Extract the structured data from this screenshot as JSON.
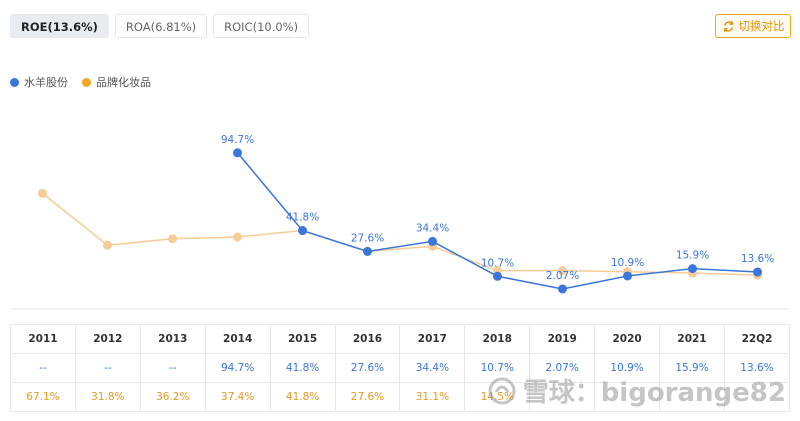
{
  "tabs": [
    {
      "label": "ROE(13.6%)",
      "active": true
    },
    {
      "label": "ROA(6.81%)",
      "active": false
    },
    {
      "label": "ROIC(10.0%)",
      "active": false
    }
  ],
  "switch_button": {
    "label": "切换对比",
    "icon": "swap-icon"
  },
  "watermark": {
    "text": "雪球：bigorange82"
  },
  "colors": {
    "series1": "#3b76dd",
    "series2": "#f7cc96",
    "series2_text": "#e69a22",
    "tab_active_bg": "#e8ecf1",
    "accent": "#f0a81c"
  },
  "chart_data": {
    "type": "line",
    "categories": [
      "2011",
      "2012",
      "2013",
      "2014",
      "2015",
      "2016",
      "2017",
      "2018",
      "2019",
      "2020",
      "2021",
      "22Q2"
    ],
    "series": [
      {
        "name": "水羊股份",
        "values": [
          null,
          null,
          null,
          94.7,
          41.8,
          27.6,
          34.4,
          10.7,
          2.07,
          10.9,
          15.9,
          13.6
        ],
        "labels": [
          "",
          "",
          "",
          "94.7%",
          "41.8%",
          "27.6%",
          "34.4%",
          "10.7%",
          "2.07%",
          "10.9%",
          "15.9%",
          "13.6%"
        ]
      },
      {
        "name": "品牌化妆品",
        "values": [
          67.1,
          31.8,
          36.2,
          37.4,
          41.8,
          27.6,
          31.1,
          14.5,
          14.5,
          13.8,
          12.9,
          11.5
        ]
      }
    ],
    "table_rows": [
      [
        "--",
        "--",
        "--",
        "94.7%",
        "41.8%",
        "27.6%",
        "34.4%",
        "10.7%",
        "2.07%",
        "10.9%",
        "15.9%",
        "13.6%"
      ],
      [
        "67.1%",
        "31.8%",
        "36.2%",
        "37.4%",
        "41.8%",
        "27.6%",
        "31.1%",
        "14.5%",
        "",
        "",
        "",
        ""
      ]
    ],
    "ylim": [
      0,
      100
    ],
    "grid": false,
    "legend": "top-left",
    "title": "",
    "xlabel": "",
    "ylabel": ""
  }
}
